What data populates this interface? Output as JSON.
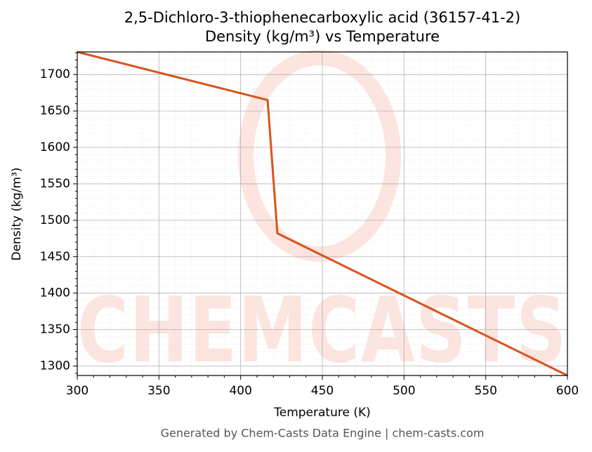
{
  "chart_data": {
    "type": "line",
    "title": "2,5-Dichloro-3-thiophenecarboxylic acid (36157-41-2)",
    "subtitle": "Density (kg/m³) vs Temperature",
    "x_label": "Temperature (K)",
    "y_label": "Density (kg/m³)",
    "x": [
      300,
      416.5,
      422.5,
      600
    ],
    "series": [
      {
        "name": "Density",
        "color": "#d9531e",
        "values": [
          1731,
          1665,
          1482,
          1287
        ]
      }
    ],
    "xlim": [
      300,
      600
    ],
    "xticks": [
      300,
      350,
      400,
      450,
      500,
      550,
      600
    ],
    "ylim": [
      1287,
      1731
    ],
    "yticks": [
      1300,
      1350,
      1400,
      1450,
      1500,
      1550,
      1600,
      1650,
      1700
    ],
    "grid": true,
    "watermark": "CHEMCASTS",
    "footer": "Generated by Chem-Casts Data Engine | chem-casts.com"
  }
}
